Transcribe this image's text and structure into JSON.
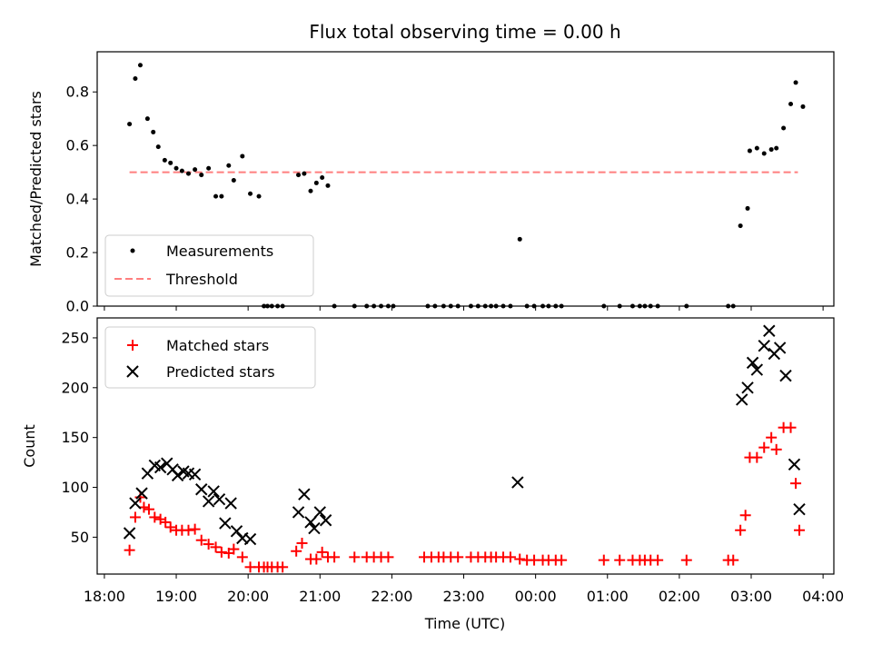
{
  "chart_data": [
    {
      "type": "scatter",
      "title": "Flux total observing time = 0.00 h",
      "xlabel": "",
      "ylabel": "Matched/Predicted stars",
      "xlim": [
        17.9,
        28.15
      ],
      "ylim": [
        0.0,
        0.95
      ],
      "y_ticks": [
        0.0,
        0.2,
        0.4,
        0.6,
        0.8
      ],
      "y_tick_labels": [
        "0.0",
        "0.2",
        "0.4",
        "0.6",
        "0.8"
      ],
      "legend_position": "lower-left",
      "threshold": {
        "name": "Threshold",
        "y": 0.5,
        "x_range": [
          18.35,
          27.65
        ],
        "color": "#ff7f7f"
      },
      "series": [
        {
          "name": "Measurements",
          "marker": "dot",
          "color": "#000000",
          "x": [
            18.35,
            18.43,
            18.5,
            18.6,
            18.68,
            18.75,
            18.84,
            18.92,
            19.0,
            19.08,
            19.17,
            19.26,
            19.35,
            19.45,
            19.55,
            19.63,
            19.73,
            19.8,
            19.92,
            20.03,
            20.15,
            20.22,
            20.27,
            20.33,
            20.41,
            20.48,
            20.7,
            20.78,
            20.87,
            20.95,
            21.03,
            21.11,
            21.2,
            21.48,
            21.65,
            21.75,
            21.85,
            21.95,
            22.02,
            22.5,
            22.6,
            22.72,
            22.82,
            22.92,
            23.1,
            23.2,
            23.3,
            23.38,
            23.45,
            23.55,
            23.65,
            23.78,
            23.88,
            23.98,
            24.1,
            24.18,
            24.28,
            24.36,
            24.95,
            25.17,
            25.35,
            25.45,
            25.52,
            25.6,
            25.7,
            26.1,
            26.68,
            26.75,
            26.85,
            26.95,
            26.98,
            27.08,
            27.18,
            27.28,
            27.35,
            27.45,
            27.55,
            27.62,
            27.72
          ],
          "y": [
            0.68,
            0.85,
            0.9,
            0.7,
            0.65,
            0.595,
            0.545,
            0.535,
            0.515,
            0.505,
            0.495,
            0.51,
            0.49,
            0.515,
            0.41,
            0.41,
            0.525,
            0.47,
            0.56,
            0.42,
            0.41,
            0.0,
            0.0,
            0.0,
            0.0,
            0.0,
            0.49,
            0.495,
            0.43,
            0.46,
            0.48,
            0.45,
            0.0,
            0.0,
            0.0,
            0.0,
            0.0,
            0.0,
            0.0,
            0.0,
            0.0,
            0.0,
            0.0,
            0.0,
            0.0,
            0.0,
            0.0,
            0.0,
            0.0,
            0.0,
            0.0,
            0.25,
            0.0,
            0.0,
            0.0,
            0.0,
            0.0,
            0.0,
            0.0,
            0.0,
            0.0,
            0.0,
            0.0,
            0.0,
            0.0,
            0.0,
            0.0,
            0.0,
            0.3,
            0.365,
            0.58,
            0.59,
            0.57,
            0.585,
            0.59,
            0.665,
            0.755,
            0.835,
            0.745
          ]
        }
      ]
    },
    {
      "type": "scatter",
      "title": "",
      "xlabel": "Time (UTC)",
      "ylabel": "Count",
      "xlim": [
        17.9,
        28.15
      ],
      "ylim": [
        13,
        270
      ],
      "y_ticks": [
        50,
        100,
        150,
        200,
        250
      ],
      "y_tick_labels": [
        "50",
        "100",
        "150",
        "200",
        "250"
      ],
      "x_ticks": [
        18,
        19,
        20,
        21,
        22,
        23,
        24,
        25,
        26,
        27,
        28
      ],
      "x_tick_labels": [
        "18:00",
        "19:00",
        "20:00",
        "21:00",
        "22:00",
        "23:00",
        "00:00",
        "01:00",
        "02:00",
        "03:00",
        "04:00"
      ],
      "legend_position": "upper-left",
      "series": [
        {
          "name": "Matched stars",
          "marker": "plus",
          "color": "#ff0000",
          "x": [
            18.35,
            18.43,
            18.5,
            18.55,
            18.62,
            18.7,
            18.78,
            18.85,
            18.92,
            19.0,
            19.08,
            19.17,
            19.26,
            19.35,
            19.45,
            19.55,
            19.63,
            19.73,
            19.8,
            19.92,
            20.03,
            20.15,
            20.22,
            20.27,
            20.33,
            20.41,
            20.48,
            20.67,
            20.75,
            20.87,
            20.95,
            21.03,
            21.11,
            21.2,
            21.48,
            21.65,
            21.75,
            21.85,
            21.95,
            22.45,
            22.55,
            22.65,
            22.72,
            22.82,
            22.92,
            23.1,
            23.2,
            23.3,
            23.38,
            23.45,
            23.55,
            23.65,
            23.78,
            23.88,
            23.98,
            24.1,
            24.18,
            24.28,
            24.36,
            24.95,
            25.17,
            25.35,
            25.45,
            25.52,
            25.6,
            25.7,
            26.1,
            26.68,
            26.75,
            26.85,
            26.92,
            26.98,
            27.08,
            27.18,
            27.28,
            27.35,
            27.45,
            27.55,
            27.62,
            27.67
          ],
          "y": [
            37,
            70,
            90,
            80,
            78,
            70,
            68,
            65,
            60,
            57,
            57,
            57,
            58,
            47,
            43,
            40,
            35,
            34,
            38,
            30,
            20,
            20,
            20,
            20,
            20,
            20,
            20,
            36,
            44,
            28,
            28,
            35,
            30,
            30,
            30,
            30,
            30,
            30,
            30,
            30,
            30,
            30,
            30,
            30,
            30,
            30,
            30,
            30,
            30,
            30,
            30,
            30,
            28,
            27,
            27,
            27,
            27,
            27,
            27,
            27,
            27,
            27,
            27,
            27,
            27,
            27,
            27,
            27,
            27,
            57,
            72,
            130,
            130,
            140,
            150,
            138,
            160,
            160,
            104,
            57
          ]
        },
        {
          "name": "Predicted stars",
          "marker": "x",
          "color": "#000000",
          "x": [
            18.35,
            18.43,
            18.52,
            18.6,
            18.7,
            18.78,
            18.87,
            18.95,
            19.02,
            19.1,
            19.17,
            19.26,
            19.35,
            19.45,
            19.52,
            19.6,
            19.68,
            19.76,
            19.84,
            19.92,
            20.03,
            20.7,
            20.78,
            20.87,
            20.92,
            21.0,
            21.08,
            23.75,
            26.87,
            26.95,
            27.02,
            27.08,
            27.18,
            27.25,
            27.32,
            27.4,
            27.48,
            27.6,
            27.67
          ],
          "y": [
            54,
            84,
            94,
            114,
            122,
            120,
            124,
            118,
            112,
            116,
            114,
            113,
            98,
            86,
            96,
            88,
            64,
            84,
            56,
            49,
            48,
            75,
            93,
            65,
            59,
            75,
            67,
            105,
            188,
            200,
            225,
            218,
            242,
            257,
            234,
            240,
            212,
            123,
            78
          ]
        }
      ]
    }
  ]
}
